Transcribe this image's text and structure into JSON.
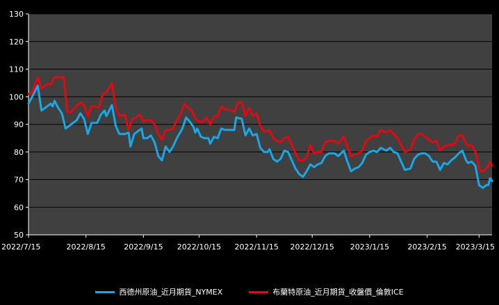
{
  "chart_data": {
    "type": "line",
    "title": "",
    "xlabel": "",
    "ylabel": "",
    "ylim": [
      50,
      130
    ],
    "yticks": [
      50,
      60,
      70,
      80,
      90,
      100,
      110,
      120,
      130
    ],
    "xlim": [
      "2022-07-15",
      "2023-03-22"
    ],
    "xticks": [
      "2022/7/15",
      "2022/8/15",
      "2022/9/15",
      "2022/10/15",
      "2022/11/15",
      "2022/12/15",
      "2023/1/15",
      "2023/2/15",
      "2023/3/15"
    ],
    "xtick_dates": [
      "2022-07-15",
      "2022-08-15",
      "2022-09-15",
      "2022-10-15",
      "2022-11-15",
      "2022-12-15",
      "2023-01-15",
      "2023-02-15",
      "2023-03-15"
    ],
    "grid": true,
    "legend_position": "bottom",
    "background": "#404040",
    "series": [
      {
        "name": "西德州原油_近月期貨_NYMEX",
        "color": "#1aa7e8",
        "points": [
          [
            "2022-07-15",
            97.5
          ],
          [
            "2022-07-17",
            100
          ],
          [
            "2022-07-20",
            104
          ],
          [
            "2022-07-22",
            95
          ],
          [
            "2022-07-25",
            96.5
          ],
          [
            "2022-07-27",
            97.5
          ],
          [
            "2022-07-28",
            96.5
          ],
          [
            "2022-07-29",
            98.5
          ],
          [
            "2022-07-31",
            96
          ],
          [
            "2022-08-02",
            94
          ],
          [
            "2022-08-04",
            88.5
          ],
          [
            "2022-08-07",
            90
          ],
          [
            "2022-08-09",
            91
          ],
          [
            "2022-08-10",
            91.5
          ],
          [
            "2022-08-12",
            94
          ],
          [
            "2022-08-14",
            92
          ],
          [
            "2022-08-16",
            86.5
          ],
          [
            "2022-08-18",
            90.5
          ],
          [
            "2022-08-21",
            90.5
          ],
          [
            "2022-08-23",
            93.5
          ],
          [
            "2022-08-25",
            95
          ],
          [
            "2022-08-26",
            93
          ],
          [
            "2022-08-29",
            97
          ],
          [
            "2022-08-31",
            89.5
          ],
          [
            "2022-09-02",
            86.5
          ],
          [
            "2022-09-05",
            86.5
          ],
          [
            "2022-09-07",
            87
          ],
          [
            "2022-09-08",
            82
          ],
          [
            "2022-09-10",
            86.5
          ],
          [
            "2022-09-12",
            87.5
          ],
          [
            "2022-09-14",
            88.5
          ],
          [
            "2022-09-15",
            85
          ],
          [
            "2022-09-17",
            85
          ],
          [
            "2022-09-19",
            86
          ],
          [
            "2022-09-21",
            83.5
          ],
          [
            "2022-09-23",
            78.5
          ],
          [
            "2022-09-25",
            77
          ],
          [
            "2022-09-27",
            82
          ],
          [
            "2022-09-29",
            80
          ],
          [
            "2022-10-01",
            82
          ],
          [
            "2022-10-03",
            85
          ],
          [
            "2022-10-06",
            88.5
          ],
          [
            "2022-10-08",
            92.5
          ],
          [
            "2022-10-10",
            91
          ],
          [
            "2022-10-12",
            89
          ],
          [
            "2022-10-13",
            87
          ],
          [
            "2022-10-14",
            88.5
          ],
          [
            "2022-10-16",
            85.5
          ],
          [
            "2022-10-18",
            85
          ],
          [
            "2022-10-20",
            85
          ],
          [
            "2022-10-21",
            83
          ],
          [
            "2022-10-23",
            85.5
          ],
          [
            "2022-10-25",
            85
          ],
          [
            "2022-10-27",
            88.5
          ],
          [
            "2022-10-29",
            88
          ],
          [
            "2022-11-01",
            88
          ],
          [
            "2022-11-03",
            88
          ],
          [
            "2022-11-04",
            92.5
          ],
          [
            "2022-11-07",
            92
          ],
          [
            "2022-11-09",
            86
          ],
          [
            "2022-11-11",
            88.5
          ],
          [
            "2022-11-13",
            86
          ],
          [
            "2022-11-15",
            86.5
          ],
          [
            "2022-11-17",
            81.5
          ],
          [
            "2022-11-19",
            80
          ],
          [
            "2022-11-21",
            80
          ],
          [
            "2022-11-22",
            81
          ],
          [
            "2022-11-24",
            77.5
          ],
          [
            "2022-11-26",
            76.5
          ],
          [
            "2022-11-28",
            77.5
          ],
          [
            "2022-11-30",
            80.5
          ],
          [
            "2022-12-02",
            80
          ],
          [
            "2022-12-04",
            77
          ],
          [
            "2022-12-06",
            74
          ],
          [
            "2022-12-08",
            72
          ],
          [
            "2022-12-10",
            71
          ],
          [
            "2022-12-12",
            73
          ],
          [
            "2022-12-14",
            75.5
          ],
          [
            "2022-12-16",
            74.5
          ],
          [
            "2022-12-18",
            75.5
          ],
          [
            "2022-12-20",
            76
          ],
          [
            "2022-12-22",
            78.5
          ],
          [
            "2022-12-24",
            79.5
          ],
          [
            "2022-12-27",
            79.5
          ],
          [
            "2022-12-29",
            78.5
          ],
          [
            "2023-01-01",
            80.5
          ],
          [
            "2023-01-03",
            76.5
          ],
          [
            "2023-01-05",
            73
          ],
          [
            "2023-01-07",
            74
          ],
          [
            "2023-01-09",
            74.5
          ],
          [
            "2023-01-11",
            76
          ],
          [
            "2023-01-13",
            79
          ],
          [
            "2023-01-15",
            80
          ],
          [
            "2023-01-17",
            80.5
          ],
          [
            "2023-01-19",
            80
          ],
          [
            "2023-01-21",
            81.5
          ],
          [
            "2023-01-24",
            80.5
          ],
          [
            "2023-01-26",
            81.5
          ],
          [
            "2023-01-28",
            80
          ],
          [
            "2023-01-30",
            79.5
          ],
          [
            "2023-02-01",
            76.5
          ],
          [
            "2023-02-03",
            73.5
          ],
          [
            "2023-02-06",
            74
          ],
          [
            "2023-02-08",
            77.5
          ],
          [
            "2023-02-10",
            79
          ],
          [
            "2023-02-12",
            79.5
          ],
          [
            "2023-02-14",
            79.5
          ],
          [
            "2023-02-16",
            78.5
          ],
          [
            "2023-02-18",
            76.5
          ],
          [
            "2023-02-20",
            76.5
          ],
          [
            "2023-02-22",
            73.5
          ],
          [
            "2023-02-24",
            76
          ],
          [
            "2023-02-26",
            75.5
          ],
          [
            "2023-02-28",
            77
          ],
          [
            "2023-03-02",
            78
          ],
          [
            "2023-03-04",
            79.5
          ],
          [
            "2023-03-06",
            80.5
          ],
          [
            "2023-03-08",
            77
          ],
          [
            "2023-03-09",
            76
          ],
          [
            "2023-03-11",
            76.5
          ],
          [
            "2023-03-13",
            75
          ],
          [
            "2023-03-14",
            71.5
          ],
          [
            "2023-03-15",
            68
          ],
          [
            "2023-03-16",
            67.5
          ],
          [
            "2023-03-17",
            67
          ],
          [
            "2023-03-19",
            68
          ],
          [
            "2023-03-20",
            68
          ],
          [
            "2023-03-21",
            70.5
          ],
          [
            "2023-03-22",
            69.5
          ]
        ]
      },
      {
        "name": "布蘭特原油_近月期貨_收盤價_倫敦ICE",
        "color": "#e30613",
        "points": [
          [
            "2022-07-15",
            101
          ],
          [
            "2022-07-17",
            101.5
          ],
          [
            "2022-07-20",
            107
          ],
          [
            "2022-07-22",
            103
          ],
          [
            "2022-07-25",
            104.5
          ],
          [
            "2022-07-27",
            104.5
          ],
          [
            "2022-07-29",
            107
          ],
          [
            "2022-08-01",
            107
          ],
          [
            "2022-08-03",
            107
          ],
          [
            "2022-08-05",
            94.5
          ],
          [
            "2022-08-07",
            94.5
          ],
          [
            "2022-08-09",
            96
          ],
          [
            "2022-08-12",
            98
          ],
          [
            "2022-08-14",
            97
          ],
          [
            "2022-08-16",
            93
          ],
          [
            "2022-08-18",
            96.5
          ],
          [
            "2022-08-20",
            96.5
          ],
          [
            "2022-08-22",
            96
          ],
          [
            "2022-08-24",
            101
          ],
          [
            "2022-08-26",
            101.5
          ],
          [
            "2022-08-29",
            105
          ],
          [
            "2022-08-31",
            96
          ],
          [
            "2022-09-02",
            93
          ],
          [
            "2022-09-05",
            93.5
          ],
          [
            "2022-09-07",
            88
          ],
          [
            "2022-09-09",
            92
          ],
          [
            "2022-09-11",
            92.5
          ],
          [
            "2022-09-13",
            93.5
          ],
          [
            "2022-09-15",
            91
          ],
          [
            "2022-09-17",
            91.5
          ],
          [
            "2022-09-19",
            91.5
          ],
          [
            "2022-09-21",
            90
          ],
          [
            "2022-09-23",
            86.5
          ],
          [
            "2022-09-25",
            84.5
          ],
          [
            "2022-09-27",
            88
          ],
          [
            "2022-09-29",
            88
          ],
          [
            "2022-10-01",
            88.5
          ],
          [
            "2022-10-03",
            91.5
          ],
          [
            "2022-10-05",
            93.5
          ],
          [
            "2022-10-07",
            97.5
          ],
          [
            "2022-10-09",
            96
          ],
          [
            "2022-10-11",
            95
          ],
          [
            "2022-10-13",
            92
          ],
          [
            "2022-10-15",
            91
          ],
          [
            "2022-10-17",
            91
          ],
          [
            "2022-10-19",
            92.5
          ],
          [
            "2022-10-21",
            90
          ],
          [
            "2022-10-23",
            93
          ],
          [
            "2022-10-25",
            93
          ],
          [
            "2022-10-27",
            96.5
          ],
          [
            "2022-10-29",
            95.5
          ],
          [
            "2022-11-01",
            95
          ],
          [
            "2022-11-03",
            94.5
          ],
          [
            "2022-11-05",
            98
          ],
          [
            "2022-11-07",
            98
          ],
          [
            "2022-11-09",
            93
          ],
          [
            "2022-11-11",
            96
          ],
          [
            "2022-11-13",
            93
          ],
          [
            "2022-11-15",
            94
          ],
          [
            "2022-11-17",
            89.5
          ],
          [
            "2022-11-19",
            87.5
          ],
          [
            "2022-11-21",
            87.5
          ],
          [
            "2022-11-22",
            88
          ],
          [
            "2022-11-24",
            85
          ],
          [
            "2022-11-26",
            84
          ],
          [
            "2022-11-28",
            83.5
          ],
          [
            "2022-11-30",
            85
          ],
          [
            "2022-12-02",
            85.5
          ],
          [
            "2022-12-04",
            82.5
          ],
          [
            "2022-12-06",
            79.5
          ],
          [
            "2022-12-08",
            77
          ],
          [
            "2022-12-10",
            77
          ],
          [
            "2022-12-12",
            78
          ],
          [
            "2022-12-14",
            82.5
          ],
          [
            "2022-12-16",
            79.5
          ],
          [
            "2022-12-18",
            80
          ],
          [
            "2022-12-20",
            80
          ],
          [
            "2022-12-22",
            83.5
          ],
          [
            "2022-12-24",
            84
          ],
          [
            "2022-12-27",
            84
          ],
          [
            "2022-12-29",
            83
          ],
          [
            "2023-01-01",
            85.5
          ],
          [
            "2023-01-03",
            82
          ],
          [
            "2023-01-05",
            78.5
          ],
          [
            "2023-01-07",
            79
          ],
          [
            "2023-01-09",
            79.5
          ],
          [
            "2023-01-11",
            80.5
          ],
          [
            "2023-01-13",
            84
          ],
          [
            "2023-01-15",
            85
          ],
          [
            "2023-01-17",
            86
          ],
          [
            "2023-01-19",
            85.5
          ],
          [
            "2023-01-21",
            88
          ],
          [
            "2023-01-24",
            87
          ],
          [
            "2023-01-26",
            88
          ],
          [
            "2023-01-28",
            86.5
          ],
          [
            "2023-01-30",
            85
          ],
          [
            "2023-02-01",
            82.5
          ],
          [
            "2023-02-03",
            80
          ],
          [
            "2023-02-06",
            81
          ],
          [
            "2023-02-08",
            84.5
          ],
          [
            "2023-02-10",
            86.5
          ],
          [
            "2023-02-12",
            86.5
          ],
          [
            "2023-02-14",
            85.5
          ],
          [
            "2023-02-16",
            84.5
          ],
          [
            "2023-02-18",
            83.5
          ],
          [
            "2023-02-20",
            84
          ],
          [
            "2023-02-22",
            80.5
          ],
          [
            "2023-02-24",
            82
          ],
          [
            "2023-02-26",
            82.5
          ],
          [
            "2023-02-28",
            82.5
          ],
          [
            "2023-03-02",
            83
          ],
          [
            "2023-03-04",
            86
          ],
          [
            "2023-03-06",
            86
          ],
          [
            "2023-03-08",
            83
          ],
          [
            "2023-03-09",
            82
          ],
          [
            "2023-03-11",
            82.5
          ],
          [
            "2023-03-13",
            80
          ],
          [
            "2023-03-14",
            77.5
          ],
          [
            "2023-03-15",
            74
          ],
          [
            "2023-03-16",
            73
          ],
          [
            "2023-03-17",
            73
          ],
          [
            "2023-03-19",
            74
          ],
          [
            "2023-03-20",
            75
          ],
          [
            "2023-03-21",
            76.5
          ],
          [
            "2023-03-22",
            75
          ]
        ]
      }
    ]
  }
}
